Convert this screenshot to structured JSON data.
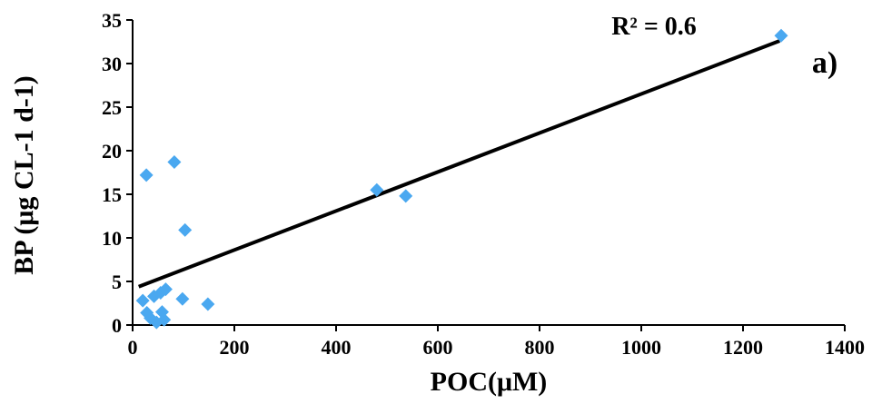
{
  "chart_data": {
    "type": "scatter",
    "title": "",
    "xlabel": "POC(μM)",
    "ylabel": "BP (μg CL-1 d-1)",
    "xlim": [
      0,
      1400
    ],
    "ylim": [
      0,
      35
    ],
    "xticks": [
      0,
      200,
      400,
      600,
      800,
      1000,
      1200,
      1400
    ],
    "yticks": [
      0,
      5,
      10,
      15,
      20,
      25,
      30,
      35
    ],
    "grid": false,
    "legend": "none",
    "marker": "diamond",
    "colors": {
      "points": "#4AA8F0",
      "trendline": "#000000"
    },
    "annotation_r2": "R² = 0.6",
    "panel_label": "a)",
    "points": [
      {
        "x": 20,
        "y": 2.8
      },
      {
        "x": 27,
        "y": 17.2
      },
      {
        "x": 28,
        "y": 1.4
      },
      {
        "x": 35,
        "y": 0.8
      },
      {
        "x": 42,
        "y": 3.3
      },
      {
        "x": 47,
        "y": 0.3
      },
      {
        "x": 55,
        "y": 3.7
      },
      {
        "x": 58,
        "y": 1.5
      },
      {
        "x": 62,
        "y": 0.6
      },
      {
        "x": 65,
        "y": 4.1
      },
      {
        "x": 82,
        "y": 18.7
      },
      {
        "x": 98,
        "y": 3.0
      },
      {
        "x": 103,
        "y": 10.9
      },
      {
        "x": 148,
        "y": 2.4
      },
      {
        "x": 480,
        "y": 15.5
      },
      {
        "x": 537,
        "y": 14.8
      },
      {
        "x": 1275,
        "y": 33.2
      }
    ],
    "trendline": {
      "x": [
        12,
        1272
      ],
      "y": [
        4.4,
        32.6
      ]
    }
  }
}
